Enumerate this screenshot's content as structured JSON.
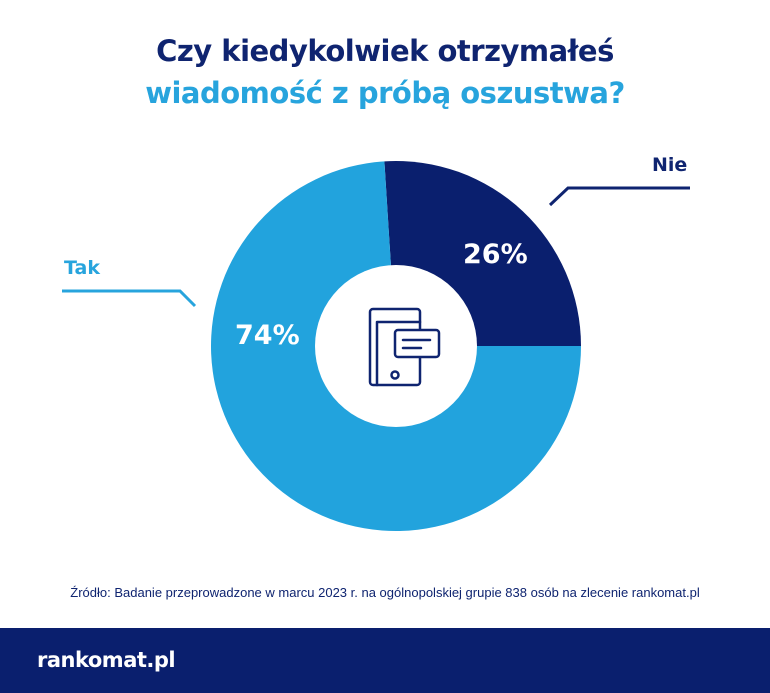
{
  "title_line1": "Czy kiedykolwiek otrzymałeś",
  "title_line2": "wiadomość z próbą oszustwa?",
  "chart_data": {
    "type": "pie",
    "variant": "donut",
    "title": "Czy kiedykolwiek otrzymałeś wiadomość z próbą oszustwa?",
    "categories": [
      "Tak",
      "Nie"
    ],
    "values": [
      74,
      26
    ],
    "labels": [
      "74%",
      "26%"
    ],
    "colors": [
      "#22a3dd",
      "#0a1f6e"
    ]
  },
  "center_icon": "phone-message-icon",
  "source": "Źródło: Badanie przeprowadzone w marcu 2023 r. na ogólnopolskiej grupie 838 osób na zlecenie rankomat.pl",
  "logo": "rankomat.pl"
}
